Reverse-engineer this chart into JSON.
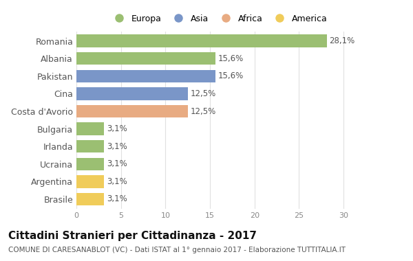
{
  "categories": [
    "Brasile",
    "Argentina",
    "Ucraina",
    "Irlanda",
    "Bulgaria",
    "Costa d'Avorio",
    "Cina",
    "Pakistan",
    "Albania",
    "Romania"
  ],
  "values": [
    3.1,
    3.1,
    3.1,
    3.1,
    3.1,
    12.5,
    12.5,
    15.6,
    15.6,
    28.1
  ],
  "labels": [
    "3,1%",
    "3,1%",
    "3,1%",
    "3,1%",
    "3,1%",
    "12,5%",
    "12,5%",
    "15,6%",
    "15,6%",
    "28,1%"
  ],
  "colors": [
    "#f0cc5a",
    "#f0cc5a",
    "#9bbf72",
    "#9bbf72",
    "#9bbf72",
    "#e8ab82",
    "#7a96c8",
    "#7a96c8",
    "#9bbf72",
    "#9bbf72"
  ],
  "legend_labels": [
    "Europa",
    "Asia",
    "Africa",
    "America"
  ],
  "legend_colors": [
    "#9bbf72",
    "#7a96c8",
    "#e8ab82",
    "#f0cc5a"
  ],
  "title": "Cittadini Stranieri per Cittadinanza - 2017",
  "subtitle": "COMUNE DI CARESANABLOT (VC) - Dati ISTAT al 1° gennaio 2017 - Elaborazione TUTTITALIA.IT",
  "xlim": [
    0,
    32
  ],
  "xticks": [
    0,
    5,
    10,
    15,
    20,
    25,
    30
  ],
  "background_color": "#ffffff",
  "grid_color": "#e0e0e0",
  "bar_height": 0.72,
  "label_fontsize": 8.5,
  "ytick_fontsize": 9,
  "xtick_fontsize": 8,
  "title_fontsize": 11,
  "subtitle_fontsize": 7.5
}
